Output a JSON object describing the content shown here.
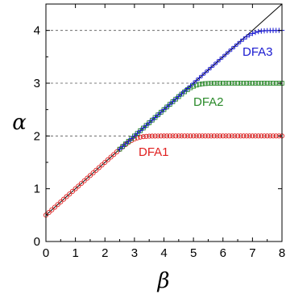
{
  "chart_data": {
    "type": "scatter",
    "xlabel": "β",
    "ylabel": "α",
    "xlim": [
      0,
      8
    ],
    "ylim": [
      0,
      4.5
    ],
    "x_ticks": [
      0,
      1,
      2,
      3,
      4,
      5,
      6,
      7,
      8
    ],
    "y_ticks": [
      0,
      1,
      2,
      3,
      4
    ],
    "hlines": [
      2,
      3,
      4
    ],
    "reference_line": {
      "description": "alpha = (beta + 1) / 2",
      "slope": 0.5,
      "intercept": 0.5
    },
    "series": [
      {
        "name": "DFA1",
        "marker": "circle",
        "color": "#e02020",
        "saturation": 2,
        "beta_min": 0.0,
        "beta_max": 8.0,
        "beta_step": 0.1
      },
      {
        "name": "DFA2",
        "marker": "square",
        "color": "#2a8a2a",
        "saturation": 3,
        "beta_min": 2.5,
        "beta_max": 8.0,
        "beta_step": 0.1
      },
      {
        "name": "DFA3",
        "marker": "plus",
        "color": "#1a1ad0",
        "saturation": 4,
        "beta_min": 2.5,
        "beta_max": 8.0,
        "beta_step": 0.1
      }
    ]
  }
}
